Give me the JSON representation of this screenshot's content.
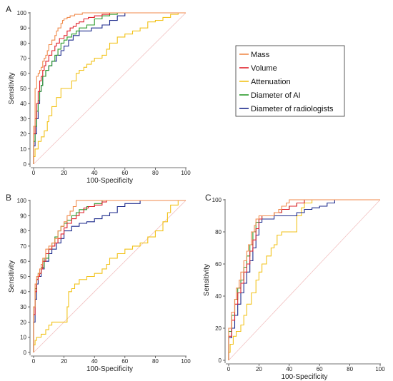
{
  "colors": {
    "mass": "#f08a4b",
    "volume": "#e0202a",
    "attenuation": "#f2c21a",
    "diameter_ai": "#2a9a2a",
    "diameter_rad": "#1c2a8c",
    "diagonal": "#f2c2c2"
  },
  "legend": [
    "Mass",
    "Volume",
    "Attenuation",
    "Diameter of AI",
    "Diameter of radiologists"
  ],
  "chart_data": [
    {
      "type": "line",
      "panel_label": "A",
      "xlabel": "100-Specificity",
      "ylabel": "Sensitivity",
      "xlim": [
        0,
        100
      ],
      "ylim": [
        0,
        100
      ],
      "xticks": [
        0,
        20,
        40,
        60,
        80,
        100
      ],
      "yticks": [
        0,
        10,
        20,
        30,
        40,
        50,
        60,
        70,
        80,
        90,
        100
      ],
      "series": [
        {
          "name": "Mass",
          "key": "mass",
          "x": [
            0,
            1,
            1,
            2,
            2,
            3,
            4,
            5,
            6,
            7,
            8,
            9,
            10,
            12,
            14,
            15,
            16,
            18,
            19,
            20,
            22,
            24,
            25,
            27,
            30,
            32,
            35,
            38,
            40,
            45,
            50,
            100
          ],
          "y": [
            0,
            25,
            40,
            50,
            55,
            58,
            60,
            62,
            64,
            68,
            70,
            72,
            75,
            79,
            82,
            85,
            88,
            90,
            93,
            95,
            96,
            97,
            98,
            98,
            99,
            99,
            100,
            100,
            100,
            100,
            100,
            100
          ]
        },
        {
          "name": "Volume",
          "key": "volume",
          "x": [
            0,
            1,
            2,
            3,
            4,
            5,
            6,
            7,
            8,
            10,
            12,
            14,
            15,
            17,
            20,
            22,
            24,
            26,
            28,
            30,
            33,
            36,
            40,
            45,
            50,
            55,
            60,
            100
          ],
          "y": [
            0,
            20,
            30,
            40,
            48,
            55,
            58,
            62,
            65,
            68,
            72,
            75,
            78,
            80,
            83,
            85,
            88,
            90,
            91,
            93,
            94,
            96,
            97,
            98,
            99,
            100,
            100,
            100
          ]
        },
        {
          "name": "Attenuation",
          "key": "attenuation",
          "x": [
            0,
            1,
            3,
            5,
            7,
            9,
            10,
            12,
            15,
            18,
            20,
            25,
            28,
            30,
            33,
            35,
            38,
            40,
            45,
            48,
            50,
            55,
            60,
            65,
            70,
            75,
            80,
            85,
            90,
            95,
            100
          ],
          "y": [
            0,
            5,
            10,
            15,
            18,
            22,
            28,
            32,
            38,
            44,
            50,
            50,
            55,
            60,
            62,
            64,
            66,
            68,
            70,
            72,
            76,
            80,
            84,
            86,
            88,
            90,
            94,
            95,
            97,
            99,
            100
          ]
        },
        {
          "name": "Diameter of AI",
          "key": "diameter_ai",
          "x": [
            0,
            1,
            2,
            3,
            4,
            5,
            6,
            8,
            10,
            12,
            14,
            16,
            18,
            20,
            22,
            25,
            28,
            30,
            35,
            40,
            45,
            50,
            55,
            60,
            70,
            100
          ],
          "y": [
            0,
            15,
            25,
            35,
            42,
            48,
            52,
            58,
            62,
            65,
            68,
            72,
            76,
            80,
            82,
            84,
            86,
            88,
            90,
            92,
            96,
            98,
            99,
            100,
            100,
            100
          ]
        },
        {
          "name": "Diameter of radiologists",
          "key": "diameter_rad",
          "x": [
            0,
            1,
            2,
            3,
            4,
            5,
            6,
            8,
            10,
            12,
            15,
            18,
            20,
            23,
            26,
            30,
            34,
            38,
            40,
            45,
            50,
            55,
            60,
            65,
            70,
            75,
            100
          ],
          "y": [
            0,
            12,
            20,
            30,
            40,
            48,
            52,
            58,
            62,
            65,
            68,
            72,
            75,
            78,
            82,
            85,
            88,
            88,
            90,
            90,
            92,
            95,
            98,
            100,
            100,
            100,
            100
          ]
        }
      ]
    },
    {
      "type": "line",
      "panel_label": "B",
      "xlabel": "100-Specificity",
      "ylabel": "Sensitivity",
      "xlim": [
        0,
        100
      ],
      "ylim": [
        0,
        100
      ],
      "xticks": [
        0,
        20,
        40,
        60,
        80,
        100
      ],
      "yticks": [
        0,
        10,
        20,
        30,
        40,
        50,
        60,
        70,
        80,
        90,
        100
      ],
      "series": [
        {
          "name": "Mass",
          "key": "mass",
          "x": [
            0,
            1,
            2,
            3,
            4,
            5,
            6,
            8,
            10,
            12,
            14,
            16,
            18,
            20,
            22,
            24,
            26,
            28,
            30,
            35,
            40,
            45,
            50,
            100
          ],
          "y": [
            0,
            30,
            45,
            50,
            52,
            55,
            58,
            62,
            68,
            70,
            72,
            75,
            80,
            83,
            86,
            90,
            93,
            96,
            100,
            100,
            100,
            100,
            100,
            100
          ]
        },
        {
          "name": "Volume",
          "key": "volume",
          "x": [
            0,
            1,
            2,
            3,
            4,
            5,
            6,
            8,
            10,
            12,
            14,
            16,
            18,
            20,
            22,
            25,
            28,
            30,
            33,
            36,
            40,
            45,
            48,
            50,
            100
          ],
          "y": [
            0,
            25,
            40,
            48,
            50,
            52,
            55,
            60,
            65,
            68,
            70,
            72,
            75,
            78,
            82,
            85,
            88,
            90,
            92,
            95,
            96,
            97,
            99,
            100,
            100
          ]
        },
        {
          "name": "Attenuation",
          "key": "attenuation",
          "x": [
            0,
            1,
            2,
            5,
            8,
            10,
            12,
            14,
            16,
            18,
            20,
            22,
            23,
            25,
            27,
            30,
            35,
            40,
            45,
            48,
            50,
            55,
            60,
            65,
            70,
            75,
            80,
            85,
            88,
            90,
            95,
            100
          ],
          "y": [
            0,
            5,
            8,
            10,
            12,
            15,
            18,
            20,
            20,
            20,
            20,
            20,
            30,
            40,
            42,
            45,
            48,
            50,
            52,
            55,
            58,
            62,
            65,
            68,
            70,
            72,
            76,
            80,
            86,
            92,
            97,
            100
          ]
        },
        {
          "name": "Diameter of AI",
          "key": "diameter_ai",
          "x": [
            0,
            1,
            2,
            3,
            5,
            7,
            10,
            12,
            14,
            16,
            18,
            20,
            22,
            25,
            28,
            30,
            35,
            40,
            45,
            50,
            55,
            60,
            100
          ],
          "y": [
            0,
            30,
            42,
            48,
            52,
            56,
            62,
            68,
            72,
            76,
            80,
            83,
            85,
            87,
            90,
            92,
            94,
            96,
            98,
            100,
            100,
            100,
            100
          ]
        },
        {
          "name": "Diameter of radiologists",
          "key": "diameter_rad",
          "x": [
            0,
            1,
            2,
            3,
            5,
            7,
            10,
            12,
            15,
            18,
            20,
            25,
            30,
            35,
            40,
            45,
            50,
            55,
            60,
            65,
            70,
            75,
            100
          ],
          "y": [
            0,
            20,
            35,
            45,
            50,
            55,
            60,
            65,
            68,
            72,
            75,
            80,
            83,
            85,
            86,
            88,
            90,
            92,
            96,
            98,
            98,
            100,
            100
          ]
        }
      ]
    },
    {
      "type": "line",
      "panel_label": "C",
      "xlabel": "100-Specificity",
      "ylabel": "Sensitivity",
      "xlim": [
        0,
        100
      ],
      "ylim": [
        0,
        100
      ],
      "xticks": [
        0,
        20,
        40,
        60,
        80,
        100
      ],
      "yticks": [
        0,
        20,
        40,
        60,
        80,
        100
      ],
      "series": [
        {
          "name": "Mass",
          "key": "mass",
          "x": [
            0,
            2,
            4,
            5,
            7,
            8,
            10,
            12,
            13,
            15,
            17,
            18,
            20,
            22,
            25,
            28,
            30,
            33,
            35,
            38,
            40,
            45,
            50,
            55,
            100
          ],
          "y": [
            0,
            20,
            30,
            38,
            45,
            50,
            55,
            62,
            68,
            72,
            80,
            84,
            88,
            90,
            90,
            90,
            90,
            92,
            94,
            96,
            98,
            100,
            100,
            100,
            100
          ]
        },
        {
          "name": "Volume",
          "key": "volume",
          "x": [
            0,
            2,
            4,
            6,
            8,
            10,
            12,
            14,
            16,
            18,
            20,
            22,
            25,
            30,
            35,
            40,
            45,
            50,
            55,
            60,
            65,
            100
          ],
          "y": [
            0,
            15,
            25,
            35,
            42,
            48,
            55,
            60,
            68,
            75,
            82,
            88,
            90,
            90,
            92,
            94,
            96,
            98,
            100,
            100,
            100,
            100
          ]
        },
        {
          "name": "Attenuation",
          "key": "attenuation",
          "x": [
            0,
            1,
            3,
            5,
            8,
            10,
            12,
            15,
            18,
            20,
            22,
            25,
            28,
            30,
            32,
            35,
            40,
            45,
            48,
            50,
            55,
            60,
            65,
            70,
            100
          ],
          "y": [
            0,
            5,
            10,
            15,
            18,
            22,
            28,
            35,
            42,
            50,
            55,
            60,
            65,
            70,
            72,
            78,
            80,
            80,
            90,
            95,
            98,
            100,
            100,
            100,
            100
          ]
        },
        {
          "name": "Diameter of AI",
          "key": "diameter_ai",
          "x": [
            0,
            2,
            4,
            6,
            8,
            10,
            12,
            14,
            16,
            18,
            20,
            22,
            25,
            28,
            30,
            35,
            40,
            45,
            50,
            55,
            60,
            100
          ],
          "y": [
            0,
            18,
            28,
            38,
            45,
            50,
            58,
            65,
            72,
            80,
            86,
            88,
            90,
            90,
            90,
            92,
            94,
            96,
            98,
            100,
            100,
            100
          ]
        },
        {
          "name": "Diameter of radiologists",
          "key": "diameter_rad",
          "x": [
            0,
            2,
            4,
            6,
            8,
            10,
            12,
            14,
            16,
            18,
            20,
            22,
            25,
            30,
            35,
            40,
            45,
            50,
            55,
            60,
            65,
            70,
            75,
            100
          ],
          "y": [
            0,
            14,
            20,
            28,
            35,
            42,
            48,
            55,
            62,
            70,
            78,
            86,
            88,
            88,
            90,
            90,
            90,
            92,
            94,
            95,
            96,
            98,
            100,
            100
          ]
        }
      ]
    }
  ]
}
